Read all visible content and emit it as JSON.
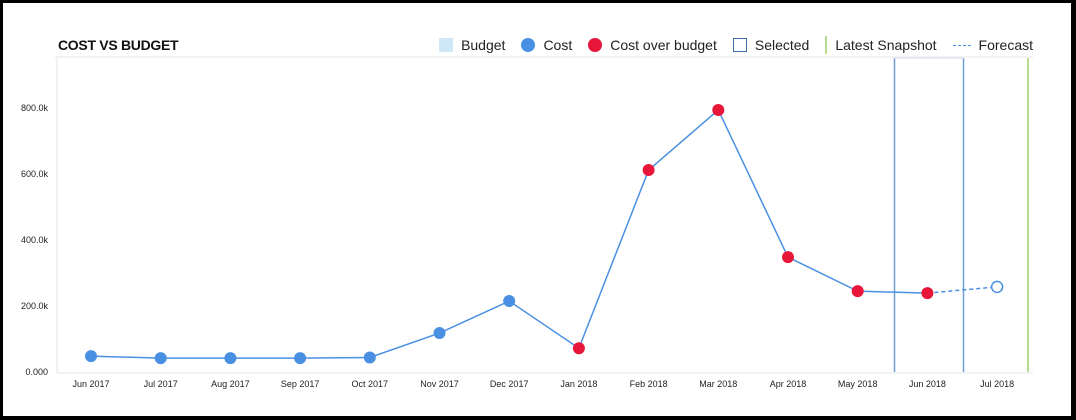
{
  "header": {
    "title": "COST VS BUDGET"
  },
  "legend": {
    "items": [
      {
        "label": "Budget",
        "icon": "square-swatch",
        "color": "#cfe8f8"
      },
      {
        "label": "Cost",
        "icon": "circle-swatch",
        "color": "#4a90e2"
      },
      {
        "label": "Cost over budget",
        "icon": "circle-swatch",
        "color": "#e8173a"
      },
      {
        "label": "Selected",
        "icon": "outline-square-swatch",
        "color": "#3f72a8"
      },
      {
        "label": "Latest Snapshot",
        "icon": "vertical-line-swatch",
        "color": "#b6dd8c"
      },
      {
        "label": "Forecast",
        "icon": "dashed-line-swatch",
        "color": "#4a90e2"
      }
    ]
  },
  "chart_data": {
    "type": "line",
    "title": "COST VS BUDGET",
    "xlabel": "",
    "ylabel": "",
    "ylim": [
      0,
      900000
    ],
    "y_ticks": [
      "0.000",
      "200.0k",
      "400.0k",
      "600.0k",
      "800.0k"
    ],
    "categories": [
      "Jun 2017",
      "Jul 2017",
      "Aug 2017",
      "Sep 2017",
      "Oct 2017",
      "Nov 2017",
      "Dec 2017",
      "Jan 2018",
      "Feb 2018",
      "Mar 2018",
      "Apr 2018",
      "May 2018",
      "Jun 2018",
      "Jul 2018"
    ],
    "series": [
      {
        "name": "Cost",
        "values": [
          48000,
          42000,
          42000,
          42000,
          44000,
          118000,
          215000,
          72000,
          612000,
          794000,
          348000,
          245000,
          239000,
          null
        ],
        "over_budget": [
          false,
          false,
          false,
          false,
          false,
          false,
          false,
          true,
          true,
          true,
          true,
          true,
          true,
          null
        ]
      },
      {
        "name": "Forecast",
        "values": [
          null,
          null,
          null,
          null,
          null,
          null,
          null,
          null,
          null,
          null,
          null,
          null,
          239000,
          258000
        ]
      }
    ],
    "selected_range": [
      "May 2018 / Jun 2018 boundary",
      "Jun 2018 / Jul 2018 boundary"
    ],
    "latest_snapshot": "after Jul 2018",
    "grid": false,
    "legend_position": "top-right"
  }
}
